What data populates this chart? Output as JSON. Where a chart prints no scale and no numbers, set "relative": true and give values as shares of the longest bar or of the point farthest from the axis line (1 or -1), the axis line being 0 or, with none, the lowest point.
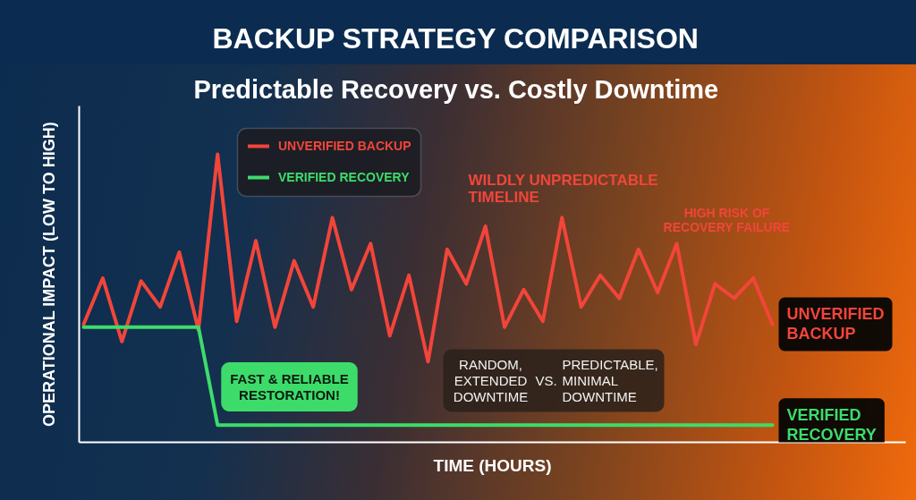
{
  "chart_data": {
    "type": "line",
    "title": "BACKUP STRATEGY COMPARISON",
    "subtitle": "Predictable Recovery vs. Costly Downtime",
    "xlabel": "TIME (HOURS)",
    "ylabel": "OPERATIONAL IMPACT (LOW TO HIGH)",
    "categories": [
      null,
      null,
      null,
      null,
      null,
      null,
      null,
      null,
      null,
      null,
      null,
      null,
      null,
      null,
      null,
      null,
      null,
      null,
      null,
      null,
      null,
      null,
      null,
      null,
      null,
      null,
      null,
      null,
      null,
      null,
      null,
      null,
      null,
      null,
      null,
      null,
      null
    ],
    "relative": true,
    "series": [
      {
        "name": "UNVERIFIED BACKUP",
        "color": "#f2453a",
        "values": [
          0.41,
          0.57,
          0.35,
          0.56,
          0.47,
          0.66,
          0.39,
          1,
          0.42,
          0.7,
          0.4,
          0.63,
          0.47,
          0.78,
          0.53,
          0.69,
          0.37,
          0.58,
          0.28,
          0.67,
          0.55,
          0.75,
          0.4,
          0.53,
          0.42,
          0.78,
          0.47,
          0.58,
          0.5,
          0.67,
          0.52,
          0.69,
          0.34,
          0.55,
          0.5,
          0.57,
          0.41
        ]
      },
      {
        "name": "VERIFIED RECOVERY",
        "color": "#3ddc6a",
        "values": [
          0.4,
          0.4,
          0.4,
          0.4,
          0.4,
          0.4,
          0.4,
          0.06,
          0.06,
          0.06,
          0.06,
          0.06,
          0.06,
          0.06,
          0.06,
          0.06,
          0.06,
          0.06,
          0.06,
          0.06,
          0.06,
          0.06,
          0.06,
          0.06,
          0.06,
          0.06,
          0.06,
          0.06,
          0.06,
          0.06,
          0.06,
          0.06,
          0.06,
          0.06,
          0.06,
          0.06,
          0.06
        ]
      }
    ],
    "annotations": [
      "WILDLY UNPREDICTABLE\nTIMELINE",
      "HIGH RISK OF\nRECOVERY FAILURE",
      "FAST & RELIABLE\nRESTORATION!",
      "RANDOM,\nEXTENDED\nDOWNTIME",
      "VS.",
      "PREDICTABLE,\nMINIMAL\nDOWNTIME"
    ],
    "legend": "top left",
    "tick_labels": false,
    "line_style": "solid"
  }
}
